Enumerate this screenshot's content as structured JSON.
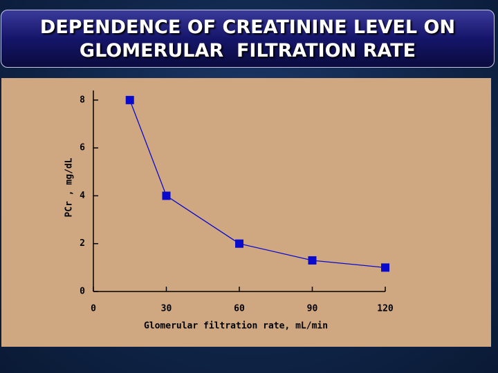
{
  "slide": {
    "title_lines": [
      "DEPENDENCE OF CREATININE LEVEL ON",
      "GLOMERULAR  FILTRATION RATE"
    ]
  },
  "chart_data": {
    "type": "line",
    "xlabel": "Glomerular filtration rate, mL/min",
    "ylabel": "PCr , mg/dL",
    "x": [
      15,
      30,
      60,
      90,
      120
    ],
    "series": [
      {
        "name": "PCr",
        "color": "#0a0acc",
        "values": [
          8,
          4,
          2,
          1.3,
          1.0
        ]
      }
    ],
    "xlim": [
      0,
      120
    ],
    "xticks": [
      0,
      30,
      60,
      90,
      120
    ],
    "ylim": [
      0,
      8.4
    ],
    "yticks": [
      0,
      2,
      4,
      6,
      8
    ]
  }
}
